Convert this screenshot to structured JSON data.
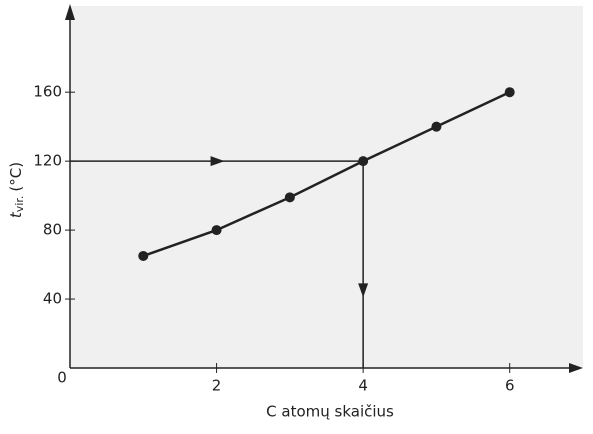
{
  "chart_data": {
    "type": "line",
    "xlabel": "C atomų skaičius",
    "ylabel": "t",
    "ylabel_sub": "vir.",
    "ylabel_unit": "(°C)",
    "x": [
      1,
      2,
      3,
      4,
      5,
      6
    ],
    "series": [
      {
        "color": "#222222",
        "values": [
          65,
          80,
          99,
          120,
          140,
          160
        ]
      }
    ],
    "xlim": [
      0,
      7
    ],
    "ylim": [
      0,
      210
    ],
    "xticks": [
      0,
      2,
      4,
      6
    ],
    "yticks": [
      40,
      80,
      120,
      160
    ],
    "guide": {
      "x": 4,
      "y": 120
    }
  }
}
